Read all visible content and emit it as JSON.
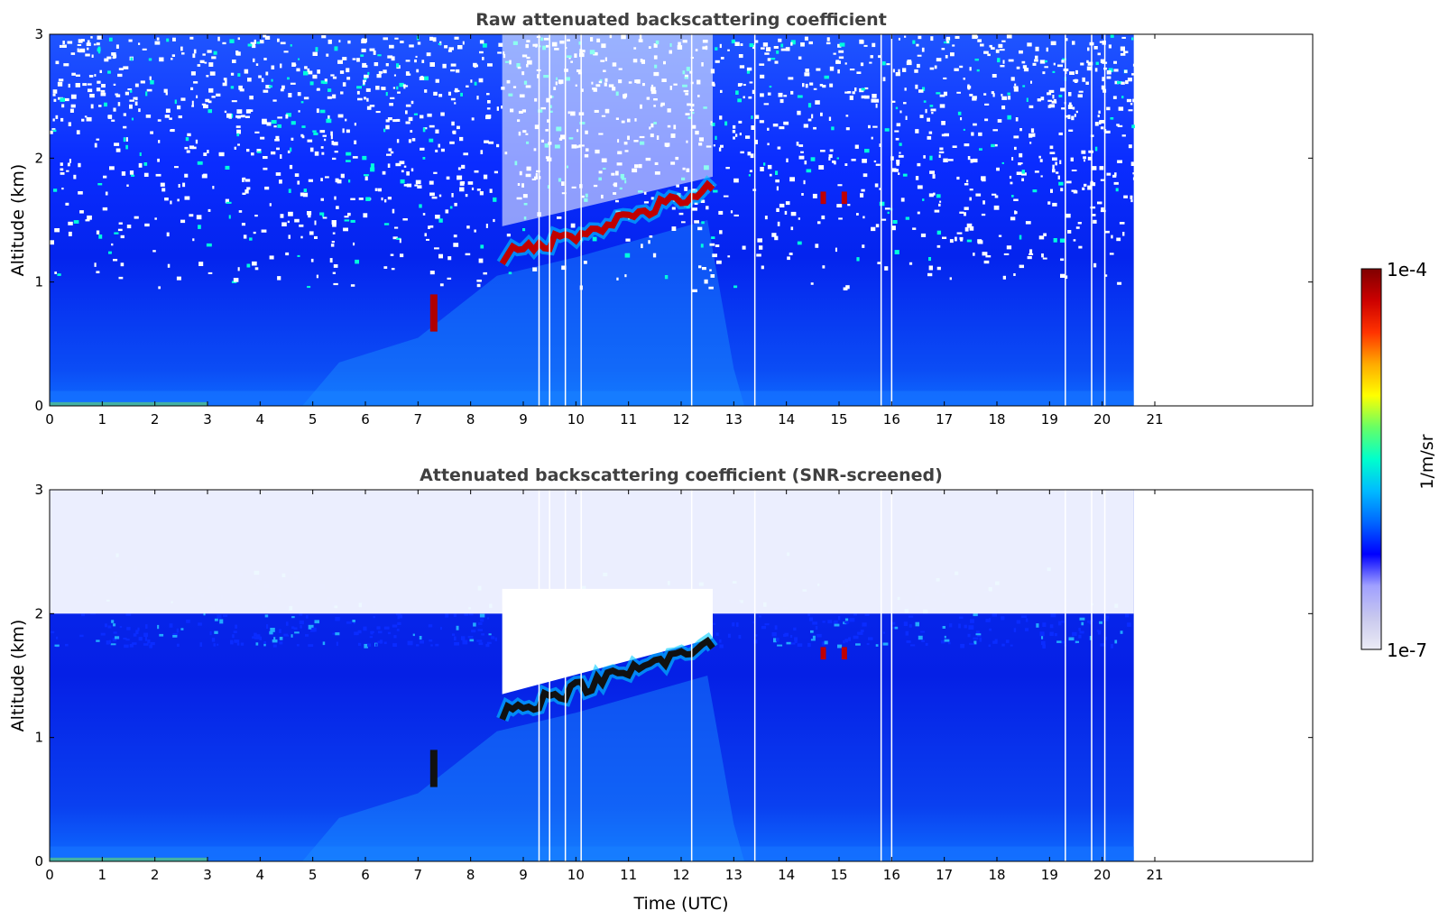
{
  "chart_data": [
    {
      "type": "heatmap",
      "title": "Raw attenuated backscattering coefficient",
      "xlabel": "",
      "ylabel": "Altitude (km)",
      "x_ticks": [
        "0",
        "1",
        "2",
        "3",
        "4",
        "5",
        "6",
        "7",
        "8",
        "9",
        "10",
        "11",
        "12",
        "13",
        "14",
        "15",
        "16",
        "17",
        "18",
        "19",
        "20",
        "21"
      ],
      "y_ticks": [
        "0",
        "1",
        "2",
        "3"
      ],
      "xlim": [
        0,
        24
      ],
      "ylim": [
        0,
        3
      ],
      "data_end_hour": 20.6,
      "features": {
        "boundary_layer_top_km": 1.75,
        "cloud_layer": {
          "start_hour": 8.6,
          "end_hour": 12.6,
          "base_km_start": 1.2,
          "base_km_end": 1.75
        },
        "low_cloud": {
          "hour": 7.3,
          "altitude_km": 0.75
        },
        "small_clouds": [
          {
            "hour": 14.7,
            "altitude_km": 1.68
          },
          {
            "hour": 15.1,
            "altitude_km": 1.68
          }
        ],
        "data_gaps_hours": [
          9.3,
          9.5,
          9.8,
          10.1,
          12.2,
          13.4,
          15.8,
          16.0,
          19.3,
          19.8,
          20.05
        ]
      }
    },
    {
      "type": "heatmap",
      "title": "Attenuated backscattering coefficient (SNR-screened)",
      "xlabel": "Time (UTC)",
      "ylabel": "Altitude (km)",
      "x_ticks": [
        "0",
        "1",
        "2",
        "3",
        "4",
        "5",
        "6",
        "7",
        "8",
        "9",
        "10",
        "11",
        "12",
        "13",
        "14",
        "15",
        "16",
        "17",
        "18",
        "19",
        "20",
        "21"
      ],
      "y_ticks": [
        "0",
        "1",
        "2",
        "3"
      ],
      "xlim": [
        0,
        24
      ],
      "ylim": [
        0,
        3
      ],
      "data_end_hour": 20.6
    }
  ],
  "colorbar": {
    "max_label": "1e-4",
    "min_label": "1e-7",
    "label": "1/m/sr",
    "colormap": "jet",
    "colors": [
      "#ebebf5",
      "#c8c8ee",
      "#a0a0ff",
      "#0000ff",
      "#0066ff",
      "#00bbff",
      "#00ffcc",
      "#66ff66",
      "#ffff00",
      "#ffaa00",
      "#ff3300",
      "#cc0000",
      "#800000"
    ]
  }
}
